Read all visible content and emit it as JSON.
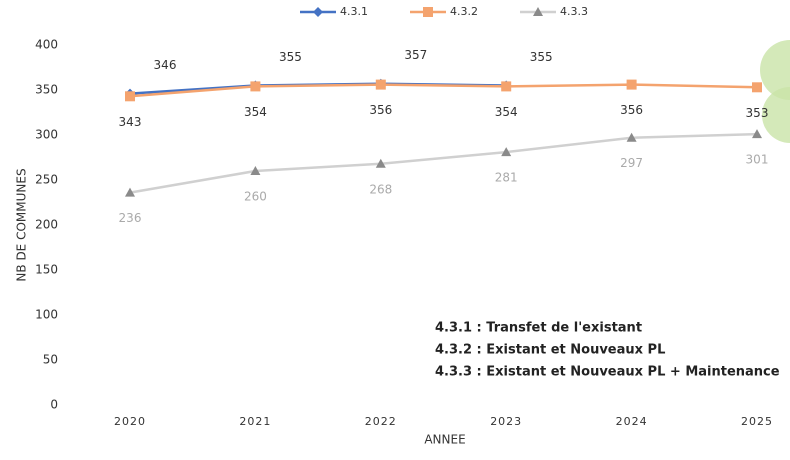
{
  "chart_data": {
    "type": "line",
    "categories": [
      "2020",
      "2021",
      "2022",
      "2023",
      "2024",
      "2025"
    ],
    "series": [
      {
        "name": "4.3.1",
        "color": "#4472c4",
        "marker": "diamond",
        "values": [
          346,
          355,
          357,
          355,
          null,
          null
        ]
      },
      {
        "name": "4.3.2",
        "color": "#f4a36e",
        "marker": "square",
        "values": [
          343,
          354,
          356,
          354,
          356,
          353
        ]
      },
      {
        "name": "4.3.3",
        "color": "#d0d0d0",
        "marker": "triangle",
        "values": [
          236,
          260,
          268,
          281,
          297,
          301
        ]
      }
    ],
    "ylim": [
      0,
      400
    ],
    "yticks": [
      0,
      50,
      100,
      150,
      200,
      250,
      300,
      350,
      400
    ],
    "y_label": "NB DE COMMUNES",
    "x_label": "ANNEE",
    "annotations": [
      "4.3.1 : Transfet de l'existant",
      "4.3.2 : Existant et Nouveaux PL",
      "4.3.3 : Existant et Nouveaux PL + Maintenance"
    ]
  }
}
